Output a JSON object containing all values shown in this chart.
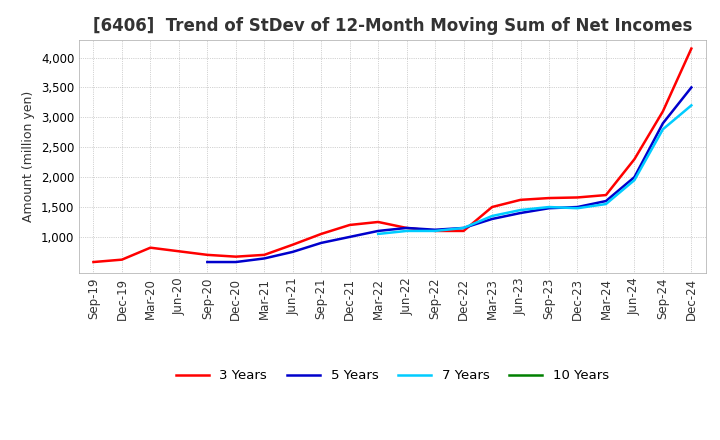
{
  "title": "[6406]  Trend of StDev of 12-Month Moving Sum of Net Incomes",
  "ylabel": "Amount (million yen)",
  "background_color": "#ffffff",
  "grid_color": "#aaaaaa",
  "x_labels": [
    "Sep-19",
    "Dec-19",
    "Mar-20",
    "Jun-20",
    "Sep-20",
    "Dec-20",
    "Mar-21",
    "Jun-21",
    "Sep-21",
    "Dec-21",
    "Mar-22",
    "Jun-22",
    "Sep-22",
    "Dec-22",
    "Mar-23",
    "Jun-23",
    "Sep-23",
    "Dec-23",
    "Mar-24",
    "Jun-24",
    "Sep-24",
    "Dec-24"
  ],
  "series": {
    "3 Years": {
      "color": "#ff0000",
      "values": [
        580,
        620,
        820,
        760,
        700,
        670,
        700,
        870,
        1050,
        1200,
        1250,
        1150,
        1100,
        1100,
        1500,
        1620,
        1650,
        1660,
        1700,
        2300,
        3100,
        4150
      ]
    },
    "5 Years": {
      "color": "#0000cc",
      "values": [
        null,
        null,
        null,
        null,
        580,
        580,
        640,
        750,
        900,
        1000,
        1100,
        1150,
        1120,
        1150,
        1300,
        1400,
        1480,
        1500,
        1600,
        2000,
        2900,
        3500
      ]
    },
    "7 Years": {
      "color": "#00ccff",
      "values": [
        null,
        null,
        null,
        null,
        null,
        null,
        null,
        null,
        null,
        null,
        1050,
        1100,
        1100,
        1150,
        1350,
        1450,
        1500,
        1480,
        1550,
        1950,
        2800,
        3200
      ]
    },
    "10 Years": {
      "color": "#008000",
      "values": [
        null,
        null,
        null,
        null,
        null,
        null,
        null,
        null,
        null,
        null,
        null,
        null,
        null,
        null,
        null,
        null,
        null,
        null,
        null,
        null,
        null,
        null
      ]
    }
  },
  "ylim": [
    400,
    4300
  ],
  "yticks": [
    1000,
    1500,
    2000,
    2500,
    3000,
    3500,
    4000
  ],
  "title_fontsize": 12,
  "axis_fontsize": 9,
  "tick_fontsize": 8.5,
  "linewidth": 1.8
}
